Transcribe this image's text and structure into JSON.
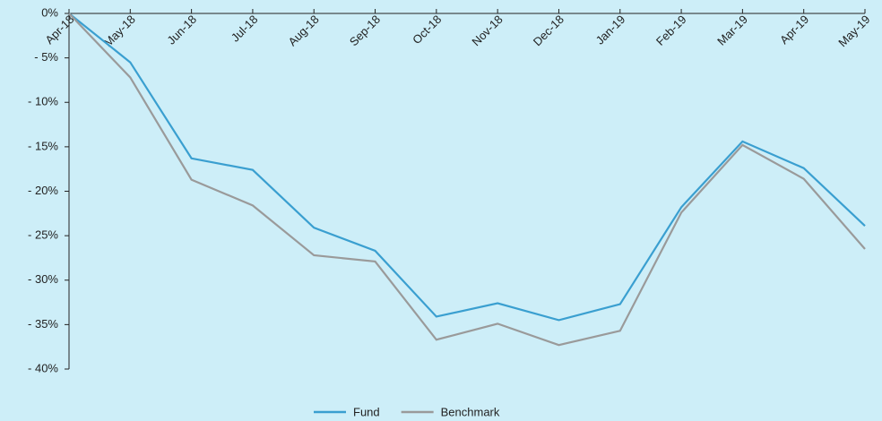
{
  "chart_data": {
    "type": "line",
    "categories": [
      "Apr-18",
      "May-18",
      "Jun-18",
      "Jul-18",
      "Aug-18",
      "Sep-18",
      "Oct-18",
      "Nov-18",
      "Dec-18",
      "Jan-19",
      "Feb-19",
      "Mar-19",
      "Apr-19",
      "May-19"
    ],
    "series": [
      {
        "name": "Fund",
        "color": "#3a9fd0",
        "values": [
          0,
          -5.5,
          -16.3,
          -17.6,
          -24.1,
          -26.7,
          -34.1,
          -32.6,
          -34.5,
          -32.7,
          -21.8,
          -14.4,
          -17.4,
          -23.9
        ]
      },
      {
        "name": "Benchmark",
        "color": "#9a9a9a",
        "values": [
          0,
          -7.2,
          -18.7,
          -21.6,
          -27.2,
          -27.9,
          -36.7,
          -34.9,
          -37.3,
          -35.7,
          -22.4,
          -14.8,
          -18.6,
          -26.5
        ]
      }
    ],
    "ylim": [
      -40,
      0
    ],
    "yticks": [
      {
        "value": 0,
        "label": "0%"
      },
      {
        "value": -5,
        "label": "- 5%"
      },
      {
        "value": -10,
        "label": "- 10%"
      },
      {
        "value": -15,
        "label": "- 15%"
      },
      {
        "value": -20,
        "label": "- 20%"
      },
      {
        "value": -25,
        "label": "- 25%"
      },
      {
        "value": -30,
        "label": "- 30%"
      },
      {
        "value": -35,
        "label": "- 35%"
      },
      {
        "value": -40,
        "label": "- 40%"
      }
    ],
    "legend": "bottom"
  }
}
